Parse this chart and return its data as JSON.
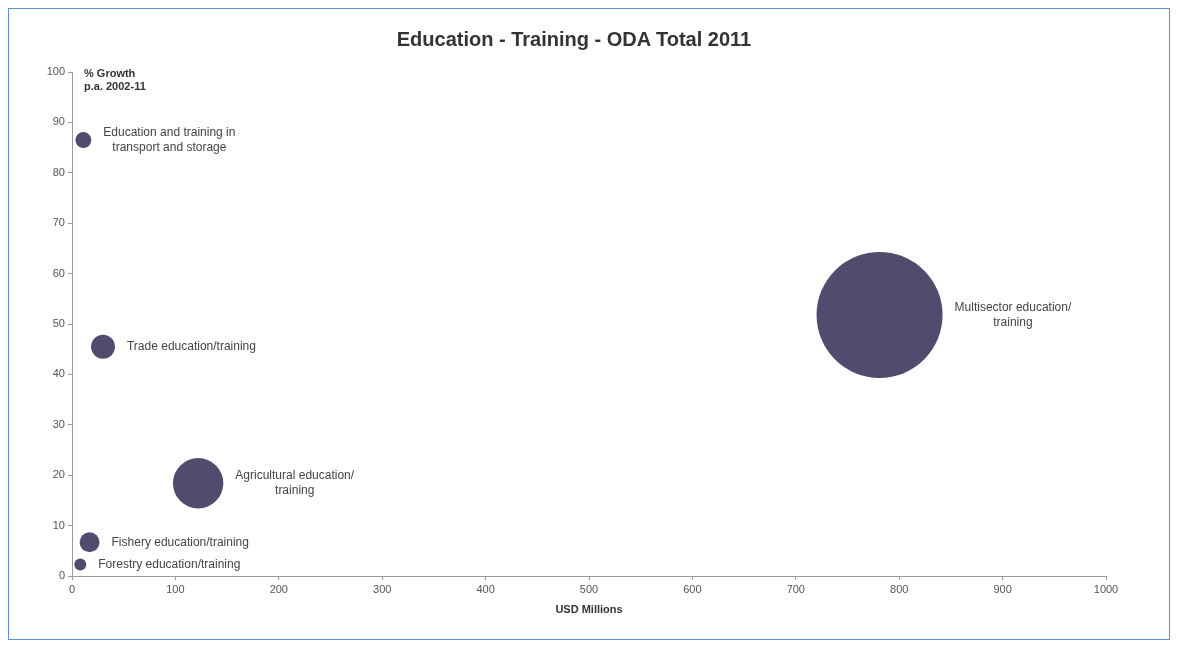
{
  "chart_data": {
    "type": "bubble",
    "title": "Education - Training - ODA Total 2011",
    "xlabel": "USD Millions",
    "ylabel": "% Growth p.a. 2002-11",
    "xlim": [
      0,
      1000
    ],
    "xticks": [
      0,
      100,
      200,
      300,
      400,
      500,
      600,
      700,
      800,
      900,
      1000
    ],
    "ylim": [
      0,
      100
    ],
    "yticks": [
      0,
      10,
      20,
      30,
      40,
      50,
      60,
      70,
      80,
      90,
      100
    ],
    "grid": false,
    "legend": false,
    "series": [
      {
        "name": "Education and training in transport and storage",
        "color": "#4f4c6e",
        "x": [
          11
        ],
        "values": [
          86.5
        ],
        "sizes": [
          0.016
        ]
      },
      {
        "name": "Trade education/training",
        "color": "#4f4c6e",
        "x": [
          30
        ],
        "values": [
          45.5
        ],
        "sizes": [
          0.036
        ]
      },
      {
        "name": "Agricultural education/ training",
        "color": "#4f4c6e",
        "x": [
          122
        ],
        "values": [
          18.4
        ],
        "sizes": [
          0.16
        ]
      },
      {
        "name": "Fishery education/training",
        "color": "#4f4c6e",
        "x": [
          17
        ],
        "values": [
          6.7
        ],
        "sizes": [
          0.025
        ]
      },
      {
        "name": "Forestry education/training",
        "color": "#4f4c6e",
        "x": [
          8
        ],
        "values": [
          2.3
        ],
        "sizes": [
          0.009
        ]
      },
      {
        "name": "Multisector education/ training",
        "color": "#4f4c6e",
        "x": [
          781
        ],
        "values": [
          51.8
        ],
        "sizes": [
          1
        ]
      }
    ]
  }
}
